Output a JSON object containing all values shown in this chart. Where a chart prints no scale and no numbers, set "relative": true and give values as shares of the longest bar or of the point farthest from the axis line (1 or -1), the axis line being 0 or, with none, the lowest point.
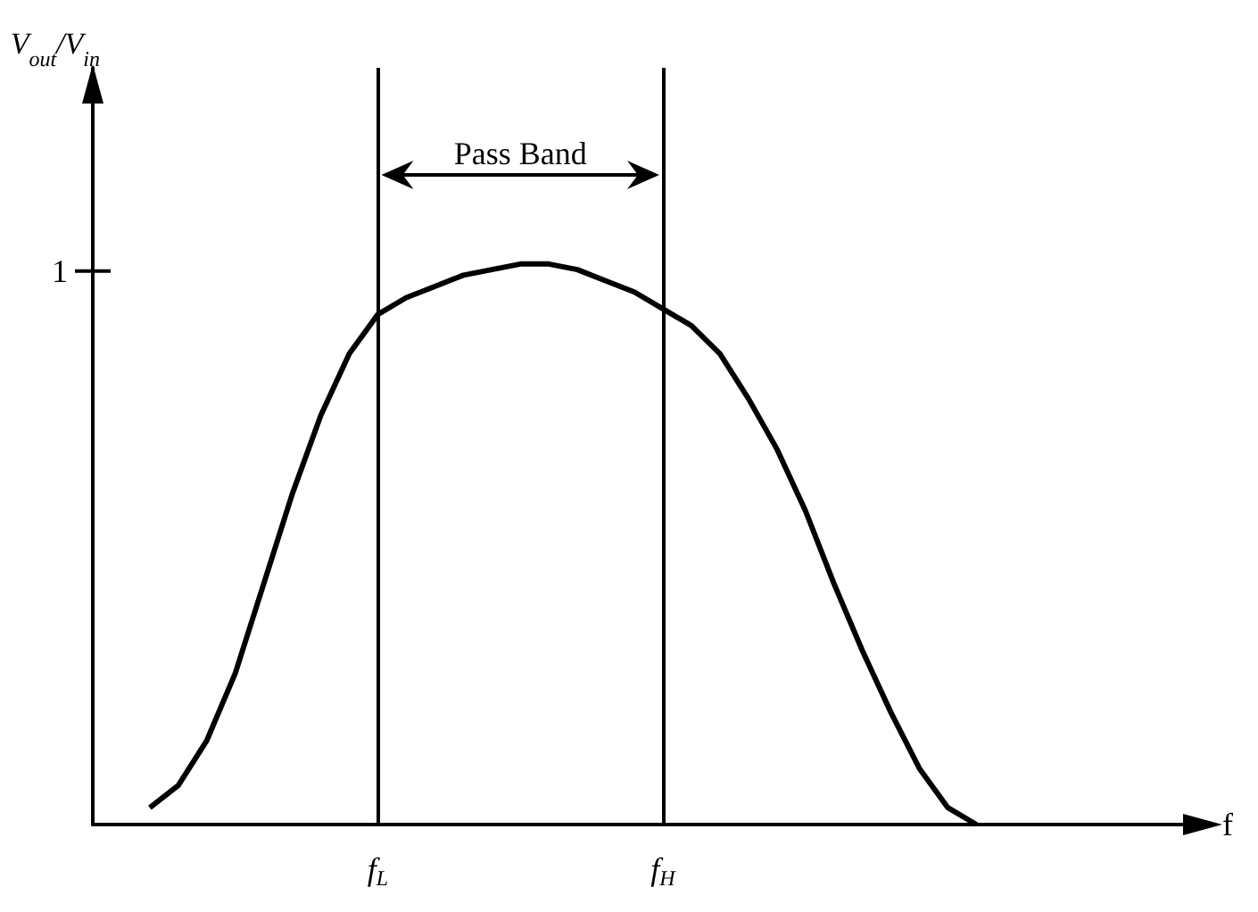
{
  "chart_data": {
    "type": "line",
    "relative": true,
    "xlabel": "f",
    "categories": [
      null,
      null,
      null,
      null,
      null,
      null,
      null,
      null,
      null,
      null,
      "f$_{L}$",
      null,
      null,
      null,
      null,
      null,
      null,
      null,
      null,
      null,
      "f$_{H}$",
      null,
      null,
      null,
      null,
      null,
      null,
      null,
      null,
      null,
      null,
      null,
      null,
      null,
      null,
      null,
      null,
      null,
      null,
      null
    ],
    "series": [
      {
        "color": "#000000",
        "values": [
          null,
          null,
          0.03,
          0.07,
          0.15,
          0.27,
          0.43,
          0.59,
          0.73,
          0.84,
          0.91,
          0.94,
          0.96,
          0.98,
          0.99,
          1.0,
          1.0,
          0.99,
          0.97,
          0.95,
          0.92,
          0.89,
          0.84,
          0.76,
          0.67,
          0.56,
          0.43,
          0.31,
          0.2,
          0.1,
          0.03,
          0.0,
          null,
          null,
          null,
          null,
          null,
          null,
          null,
          null
        ]
      }
    ],
    "ref_lines": [
      {
        "axis": "x",
        "value": "f$_{L}$",
        "color": "#000000"
      },
      {
        "axis": "x",
        "value": "f$_{H}$",
        "color": "#000000"
      }
    ],
    "annotations": [
      "1",
      "Pass Band",
      "V$_{out}$/V$_{in}$"
    ],
    "grid": false,
    "marker": "none",
    "line_style": "solid"
  }
}
